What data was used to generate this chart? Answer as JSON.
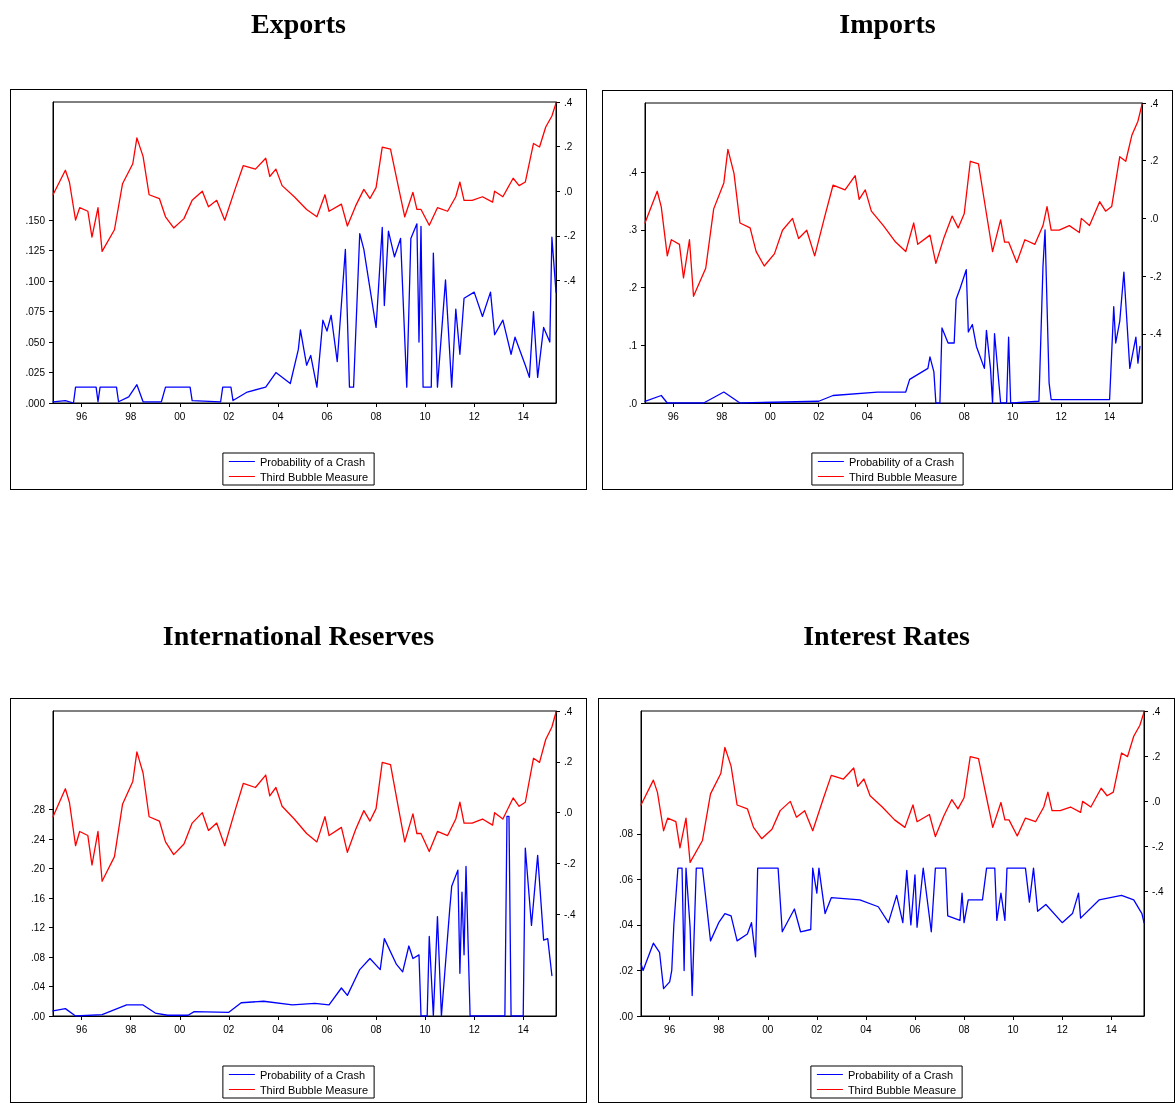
{
  "chart_data": [
    {
      "type": "line",
      "title": "Exports",
      "legend": "bottom",
      "marker": "none",
      "line_style": "solid",
      "xlim": [
        "1995-05",
        "2015-11"
      ],
      "xticks": [
        {
          "value": "1996-07",
          "label": "96"
        },
        {
          "value": "1998-07",
          "label": "98"
        },
        {
          "value": "2000-07",
          "label": "00"
        },
        {
          "value": "2002-07",
          "label": "02"
        },
        {
          "value": "2004-07",
          "label": "04"
        },
        {
          "value": "2006-07",
          "label": "06"
        },
        {
          "value": "2008-07",
          "label": "08"
        },
        {
          "value": "2010-07",
          "label": "10"
        },
        {
          "value": "2012-07",
          "label": "12"
        },
        {
          "value": "2014-07",
          "label": "14"
        }
      ],
      "ylim": [
        0,
        0.247
      ],
      "yticks": [
        {
          "value": 0,
          "label": ".000"
        },
        {
          "value": 0.025,
          "label": ".025"
        },
        {
          "value": 0.05,
          "label": ".050"
        },
        {
          "value": 0.075,
          "label": ".075"
        },
        {
          "value": 0.1,
          "label": ".100"
        },
        {
          "value": 0.125,
          "label": ".125"
        },
        {
          "value": 0.15,
          "label": ".150"
        }
      ],
      "y2lim": [
        -0.95,
        0.4
      ],
      "y2ticks": [
        {
          "value": 0.4,
          "label": ".4"
        },
        {
          "value": 0.2,
          "label": ".2"
        },
        {
          "value": 0,
          "label": ".0"
        },
        {
          "value": -0.2,
          "label": "-.2"
        },
        {
          "value": -0.4,
          "label": "-.4"
        }
      ],
      "series": [
        {
          "name": "Probability of a Crash",
          "color": "#0000ff",
          "x": [
            "1995-05",
            "1995-11",
            "1996-03",
            "1996-04",
            "1997-02",
            "1997-03",
            "1997-04",
            "1997-12",
            "1998-01",
            "1998-06",
            "1998-10",
            "1999-01",
            "1999-10",
            "1999-12",
            "2000-12",
            "2001-01",
            "2002-03",
            "2002-04",
            "2002-08",
            "2002-09",
            "2003-04",
            "2004-01",
            "2004-06",
            "2005-01",
            "2005-05",
            "2005-06",
            "2005-09",
            "2005-11",
            "2006-02",
            "2006-05",
            "2006-07",
            "2006-09",
            "2006-12",
            "2007-04",
            "2007-06",
            "2007-08",
            "2007-11",
            "2008-01",
            "2008-07",
            "2008-10",
            "2008-11",
            "2009-01",
            "2009-04",
            "2009-07",
            "2009-10",
            "2009-12",
            "2010-03",
            "2010-04",
            "2010-05",
            "2010-06",
            "2010-10",
            "2010-11",
            "2011-01",
            "2011-05",
            "2011-08",
            "2011-10",
            "2011-12",
            "2012-02",
            "2012-07",
            "2012-11",
            "2013-03",
            "2013-05",
            "2013-09",
            "2014-01",
            "2014-03",
            "2014-08",
            "2014-10",
            "2014-12",
            "2015-02",
            "2015-05",
            "2015-08",
            "2015-09",
            "2015-11"
          ],
          "values": [
            0.001,
            0.002,
            0.0,
            0.013,
            0.013,
            0.001,
            0.013,
            0.013,
            0.001,
            0.005,
            0.015,
            0.001,
            0.001,
            0.013,
            0.013,
            0.002,
            0.001,
            0.013,
            0.013,
            0.002,
            0.009,
            0.013,
            0.025,
            0.016,
            0.044,
            0.06,
            0.031,
            0.039,
            0.013,
            0.068,
            0.059,
            0.072,
            0.034,
            0.126,
            0.013,
            0.013,
            0.139,
            0.126,
            0.062,
            0.144,
            0.08,
            0.141,
            0.12,
            0.135,
            0.013,
            0.135,
            0.147,
            0.05,
            0.145,
            0.013,
            0.013,
            0.123,
            0.013,
            0.101,
            0.013,
            0.077,
            0.04,
            0.086,
            0.091,
            0.071,
            0.091,
            0.056,
            0.068,
            0.04,
            0.054,
            0.031,
            0.021,
            0.075,
            0.021,
            0.062,
            0.05,
            0.136,
            0.091
          ]
        },
        {
          "name": "Third Bubble Measure",
          "color": "#ff0000",
          "axis": "y2",
          "x": [
            "1995-05",
            "1995-11",
            "1996-01",
            "1996-04",
            "1996-06",
            "1996-10",
            "1996-12",
            "1997-03",
            "1997-05",
            "1997-11",
            "1998-03",
            "1998-08",
            "1998-10",
            "1999-01",
            "1999-04",
            "1999-09",
            "1999-12",
            "2000-04",
            "2000-09",
            "2001-01",
            "2001-06",
            "2001-09",
            "2002-01",
            "2002-05",
            "2002-10",
            "2003-02",
            "2003-08",
            "2004-01",
            "2004-03",
            "2004-06",
            "2004-09",
            "2005-03",
            "2005-09",
            "2006-02",
            "2006-06",
            "2006-08",
            "2007-02",
            "2007-05",
            "2007-09",
            "2008-01",
            "2008-04",
            "2008-07",
            "2008-10",
            "2009-02",
            "2009-06",
            "2009-09",
            "2010-01",
            "2010-03",
            "2010-05",
            "2010-09",
            "2011-01",
            "2011-06",
            "2011-10",
            "2011-12",
            "2012-02",
            "2012-06",
            "2012-11",
            "2013-04",
            "2013-05",
            "2013-09",
            "2014-02",
            "2014-05",
            "2014-08",
            "2014-12",
            "2015-03",
            "2015-06",
            "2015-09",
            "2015-11"
          ],
          "values": [
            -0.016,
            0.094,
            0.04,
            -0.13,
            -0.074,
            -0.09,
            -0.206,
            -0.074,
            -0.27,
            -0.173,
            0.033,
            0.123,
            0.239,
            0.156,
            -0.016,
            -0.033,
            -0.115,
            -0.165,
            -0.123,
            -0.041,
            0.0,
            -0.07,
            -0.041,
            -0.13,
            0.008,
            0.115,
            0.099,
            0.148,
            0.066,
            0.099,
            0.025,
            -0.025,
            -0.082,
            -0.115,
            -0.016,
            -0.09,
            -0.058,
            -0.156,
            -0.066,
            0.008,
            -0.033,
            0.016,
            0.198,
            0.189,
            0.016,
            -0.115,
            -0.005,
            -0.082,
            -0.082,
            -0.153,
            -0.074,
            -0.09,
            -0.025,
            0.041,
            -0.041,
            -0.041,
            -0.025,
            -0.049,
            0.0,
            -0.025,
            0.058,
            0.025,
            0.041,
            0.214,
            0.198,
            0.288,
            0.337,
            0.395
          ]
        }
      ]
    },
    {
      "type": "line",
      "title": "Imports",
      "legend": "bottom",
      "marker": "none",
      "line_style": "solid",
      "xlim": [
        "1995-05",
        "2015-11"
      ],
      "xticks": [
        {
          "value": "1996-07",
          "label": "96"
        },
        {
          "value": "1998-07",
          "label": "98"
        },
        {
          "value": "2000-07",
          "label": "00"
        },
        {
          "value": "2002-07",
          "label": "02"
        },
        {
          "value": "2004-07",
          "label": "04"
        },
        {
          "value": "2006-07",
          "label": "06"
        },
        {
          "value": "2008-07",
          "label": "08"
        },
        {
          "value": "2010-07",
          "label": "10"
        },
        {
          "value": "2012-07",
          "label": "12"
        },
        {
          "value": "2014-07",
          "label": "14"
        }
      ],
      "ylim": [
        0,
        0.52
      ],
      "yticks": [
        {
          "value": 0,
          "label": ".0"
        },
        {
          "value": 0.1,
          "label": ".1"
        },
        {
          "value": 0.2,
          "label": ".2"
        },
        {
          "value": 0.3,
          "label": ".3"
        },
        {
          "value": 0.4,
          "label": ".4"
        }
      ],
      "y2lim": [
        -0.64,
        0.4
      ],
      "y2ticks": [
        {
          "value": 0.4,
          "label": ".4"
        },
        {
          "value": 0.2,
          "label": ".2"
        },
        {
          "value": 0,
          "label": ".0"
        },
        {
          "value": -0.2,
          "label": "-.2"
        },
        {
          "value": -0.4,
          "label": "-.4"
        }
      ],
      "series": [
        {
          "name": "Probability of a Crash",
          "color": "#0000ff",
          "x": [
            "1995-05",
            "1996-01",
            "1996-04",
            "1997-10",
            "1998-08",
            "1999-04",
            "2002-07",
            "2003-02",
            "2004-12",
            "2006-02",
            "2006-04",
            "2007-01",
            "2007-02",
            "2007-04",
            "2007-05",
            "2007-07",
            "2007-08",
            "2007-11",
            "2008-02",
            "2008-03",
            "2008-05",
            "2008-08",
            "2008-09",
            "2008-11",
            "2009-01",
            "2009-05",
            "2009-06",
            "2009-08",
            "2009-09",
            "2009-10",
            "2010-01",
            "2010-04",
            "2010-05",
            "2010-06",
            "2011-08",
            "2011-10",
            "2011-11",
            "2012-01",
            "2012-02",
            "2014-07",
            "2014-09",
            "2014-10",
            "2014-12",
            "2015-02",
            "2015-05",
            "2015-08",
            "2015-09",
            "2015-10"
          ],
          "values": [
            0.003,
            0.013,
            0,
            0,
            0.019,
            0,
            0.003,
            0.013,
            0.019,
            0.019,
            0.041,
            0.06,
            0.08,
            0.054,
            0,
            0,
            0.13,
            0.104,
            0.104,
            0.18,
            0.199,
            0.231,
            0.123,
            0.136,
            0.098,
            0.06,
            0.126,
            0.06,
            0,
            0.12,
            0,
            0,
            0.114,
            0,
            0.003,
            0.237,
            0.3,
            0.035,
            0.006,
            0.006,
            0.167,
            0.104,
            0.142,
            0.227,
            0.06,
            0.114,
            0.069,
            0.098
          ]
        },
        {
          "name": "Third Bubble Measure",
          "color": "#ff0000",
          "axis": "y2",
          "x": [
            "1995-05",
            "1995-11",
            "1996-01",
            "1996-04",
            "1996-06",
            "1996-10",
            "1996-12",
            "1997-03",
            "1997-05",
            "1997-11",
            "1998-03",
            "1998-08",
            "1998-10",
            "1999-01",
            "1999-04",
            "1999-09",
            "1999-12",
            "2000-04",
            "2000-09",
            "2001-01",
            "2001-06",
            "2001-09",
            "2002-01",
            "2002-05",
            "2002-10",
            "2003-02",
            "2003-08",
            "2004-01",
            "2004-03",
            "2004-06",
            "2004-09",
            "2005-03",
            "2005-09",
            "2006-02",
            "2006-06",
            "2006-08",
            "2007-02",
            "2007-05",
            "2007-09",
            "2008-01",
            "2008-04",
            "2008-07",
            "2008-10",
            "2009-02",
            "2009-06",
            "2009-09",
            "2010-01",
            "2010-03",
            "2010-05",
            "2010-09",
            "2011-01",
            "2011-06",
            "2011-10",
            "2011-12",
            "2012-02",
            "2012-06",
            "2012-11",
            "2013-04",
            "2013-05",
            "2013-09",
            "2014-02",
            "2014-05",
            "2014-08",
            "2014-12",
            "2015-03",
            "2015-06",
            "2015-09",
            "2015-11"
          ],
          "values": [
            -0.016,
            0.094,
            0.04,
            -0.13,
            -0.074,
            -0.09,
            -0.206,
            -0.074,
            -0.27,
            -0.173,
            0.033,
            0.123,
            0.239,
            0.156,
            -0.016,
            -0.033,
            -0.115,
            -0.165,
            -0.123,
            -0.041,
            0.0,
            -0.07,
            -0.041,
            -0.13,
            0.008,
            0.115,
            0.099,
            0.148,
            0.066,
            0.099,
            0.025,
            -0.025,
            -0.082,
            -0.115,
            -0.016,
            -0.09,
            -0.058,
            -0.156,
            -0.066,
            0.008,
            -0.033,
            0.016,
            0.198,
            0.189,
            0.016,
            -0.115,
            -0.005,
            -0.082,
            -0.082,
            -0.153,
            -0.074,
            -0.09,
            -0.025,
            0.041,
            -0.041,
            -0.041,
            -0.025,
            -0.049,
            0.0,
            -0.025,
            0.058,
            0.025,
            0.041,
            0.214,
            0.198,
            0.288,
            0.337,
            0.395
          ]
        }
      ]
    },
    {
      "type": "line",
      "title": "International Reserves",
      "legend": "bottom",
      "marker": "none",
      "line_style": "solid",
      "xlim": [
        "1995-05",
        "2015-11"
      ],
      "xticks": [
        {
          "value": "1996-07",
          "label": "96"
        },
        {
          "value": "1998-07",
          "label": "98"
        },
        {
          "value": "2000-07",
          "label": "00"
        },
        {
          "value": "2002-07",
          "label": "02"
        },
        {
          "value": "2004-07",
          "label": "04"
        },
        {
          "value": "2006-07",
          "label": "06"
        },
        {
          "value": "2008-07",
          "label": "08"
        },
        {
          "value": "2010-07",
          "label": "10"
        },
        {
          "value": "2012-07",
          "label": "12"
        },
        {
          "value": "2014-07",
          "label": "14"
        }
      ],
      "ylim": [
        0,
        0.414
      ],
      "yticks": [
        {
          "value": 0,
          "label": ".00"
        },
        {
          "value": 0.04,
          "label": ".04"
        },
        {
          "value": 0.08,
          "label": ".08"
        },
        {
          "value": 0.12,
          "label": ".12"
        },
        {
          "value": 0.16,
          "label": ".16"
        },
        {
          "value": 0.2,
          "label": ".20"
        },
        {
          "value": 0.24,
          "label": ".24"
        },
        {
          "value": 0.28,
          "label": ".28"
        }
      ],
      "y2lim": [
        -0.8,
        0.4
      ],
      "y2ticks": [
        {
          "value": 0.4,
          "label": ".4"
        },
        {
          "value": 0.2,
          "label": ".2"
        },
        {
          "value": 0,
          "label": ".0"
        },
        {
          "value": -0.2,
          "label": "-.2"
        },
        {
          "value": -0.4,
          "label": "-.4"
        }
      ],
      "series": [
        {
          "name": "Probability of a Crash",
          "color": "#0000ff",
          "x": [
            "1995-05",
            "1995-11",
            "1996-04",
            "1997-05",
            "1998-05",
            "1999-01",
            "1999-07",
            "2000-01",
            "2000-11",
            "2001-02",
            "2002-07",
            "2003-01",
            "2003-12",
            "2005-02",
            "2006-01",
            "2006-08",
            "2007-02",
            "2007-05",
            "2007-11",
            "2008-04",
            "2008-09",
            "2008-11",
            "2009-05",
            "2009-08",
            "2009-11",
            "2010-01",
            "2010-04",
            "2010-05",
            "2010-08",
            "2010-09",
            "2010-11",
            "2011-01",
            "2011-03",
            "2011-07",
            "2011-08",
            "2011-11",
            "2011-12",
            "2012-01",
            "2012-02",
            "2012-03",
            "2012-05",
            "2013-10",
            "2013-11",
            "2013-12",
            "2014-01",
            "2014-07",
            "2014-08",
            "2014-11",
            "2015-02",
            "2015-05",
            "2015-07",
            "2015-09"
          ],
          "values": [
            0.007,
            0.01,
            0.0,
            0.002,
            0.015,
            0.015,
            0.004,
            0.001,
            0.001,
            0.006,
            0.005,
            0.018,
            0.02,
            0.015,
            0.017,
            0.015,
            0.038,
            0.028,
            0.063,
            0.078,
            0.063,
            0.105,
            0.07,
            0.06,
            0.095,
            0.078,
            0.083,
            0,
            0,
            0.108,
            0,
            0.135,
            0,
            0.143,
            0.176,
            0.198,
            0.058,
            0.168,
            0.083,
            0.203,
            0,
            0,
            0.271,
            0.271,
            0,
            0,
            0.228,
            0.123,
            0.218,
            0.103,
            0.105,
            0.055
          ]
        },
        {
          "name": "Third Bubble Measure",
          "color": "#ff0000",
          "axis": "y2",
          "x": [
            "1995-05",
            "1995-11",
            "1996-01",
            "1996-04",
            "1996-06",
            "1996-10",
            "1996-12",
            "1997-03",
            "1997-05",
            "1997-11",
            "1998-03",
            "1998-08",
            "1998-10",
            "1999-01",
            "1999-04",
            "1999-09",
            "1999-12",
            "2000-04",
            "2000-09",
            "2001-01",
            "2001-06",
            "2001-09",
            "2002-01",
            "2002-05",
            "2002-10",
            "2003-02",
            "2003-08",
            "2004-01",
            "2004-03",
            "2004-06",
            "2004-09",
            "2005-03",
            "2005-09",
            "2006-02",
            "2006-06",
            "2006-08",
            "2007-02",
            "2007-05",
            "2007-09",
            "2008-01",
            "2008-04",
            "2008-07",
            "2008-10",
            "2009-02",
            "2009-06",
            "2009-09",
            "2010-01",
            "2010-03",
            "2010-05",
            "2010-09",
            "2011-01",
            "2011-06",
            "2011-10",
            "2011-12",
            "2012-02",
            "2012-06",
            "2012-11",
            "2013-04",
            "2013-05",
            "2013-09",
            "2014-02",
            "2014-05",
            "2014-08",
            "2014-12",
            "2015-03",
            "2015-06",
            "2015-09",
            "2015-11"
          ],
          "values": [
            -0.016,
            0.094,
            0.04,
            -0.13,
            -0.074,
            -0.09,
            -0.206,
            -0.074,
            -0.27,
            -0.173,
            0.033,
            0.123,
            0.239,
            0.156,
            -0.016,
            -0.033,
            -0.115,
            -0.165,
            -0.123,
            -0.041,
            0.0,
            -0.07,
            -0.041,
            -0.13,
            0.008,
            0.115,
            0.099,
            0.148,
            0.066,
            0.099,
            0.025,
            -0.025,
            -0.082,
            -0.115,
            -0.016,
            -0.09,
            -0.058,
            -0.156,
            -0.066,
            0.008,
            -0.033,
            0.016,
            0.198,
            0.189,
            0.016,
            -0.115,
            -0.005,
            -0.082,
            -0.082,
            -0.153,
            -0.074,
            -0.09,
            -0.025,
            0.041,
            -0.041,
            -0.041,
            -0.025,
            -0.049,
            0.0,
            -0.025,
            0.058,
            0.025,
            0.041,
            0.214,
            0.198,
            0.288,
            0.337,
            0.395
          ]
        }
      ]
    },
    {
      "type": "line",
      "title": "Interest Rates",
      "legend": "bottom",
      "marker": "none",
      "line_style": "solid",
      "xlim": [
        "1995-05",
        "2015-11"
      ],
      "xticks": [
        {
          "value": "1996-07",
          "label": "96"
        },
        {
          "value": "1998-07",
          "label": "98"
        },
        {
          "value": "2000-07",
          "label": "00"
        },
        {
          "value": "2002-07",
          "label": "02"
        },
        {
          "value": "2004-07",
          "label": "04"
        },
        {
          "value": "2006-07",
          "label": "06"
        },
        {
          "value": "2008-07",
          "label": "08"
        },
        {
          "value": "2010-07",
          "label": "10"
        },
        {
          "value": "2012-07",
          "label": "12"
        },
        {
          "value": "2014-07",
          "label": "14"
        }
      ],
      "ylim": [
        0,
        0.134
      ],
      "yticks": [
        {
          "value": 0,
          "label": ".00"
        },
        {
          "value": 0.02,
          "label": ".02"
        },
        {
          "value": 0.04,
          "label": ".04"
        },
        {
          "value": 0.06,
          "label": ".06"
        },
        {
          "value": 0.08,
          "label": ".08"
        }
      ],
      "y2lim": [
        -0.95,
        0.4
      ],
      "y2ticks": [
        {
          "value": 0.4,
          "label": ".4"
        },
        {
          "value": 0.2,
          "label": ".2"
        },
        {
          "value": 0,
          "label": ".0"
        },
        {
          "value": -0.2,
          "label": "-.2"
        },
        {
          "value": -0.4,
          "label": "-.4"
        }
      ],
      "series": [
        {
          "name": "Probability of a Crash",
          "color": "#0000ff",
          "x": [
            "1995-05",
            "1995-06",
            "1995-11",
            "1996-02",
            "1996-04",
            "1996-07",
            "1996-08",
            "1996-09",
            "1996-11",
            "1997-01",
            "1997-02",
            "1997-03",
            "1997-05",
            "1997-06",
            "1997-08",
            "1997-11",
            "1998-03",
            "1998-07",
            "1998-10",
            "1999-01",
            "1999-04",
            "1999-09",
            "1999-11",
            "2000-01",
            "2000-02",
            "2000-12",
            "2001-02",
            "2001-08",
            "2001-11",
            "2002-04",
            "2002-05",
            "2002-07",
            "2002-08",
            "2002-11",
            "2003-02",
            "2004-04",
            "2005-01",
            "2005-06",
            "2005-10",
            "2006-01",
            "2006-03",
            "2006-05",
            "2006-07",
            "2006-08",
            "2006-11",
            "2007-03",
            "2007-05",
            "2007-10",
            "2007-11",
            "2008-05",
            "2008-06",
            "2008-07",
            "2008-09",
            "2009-04",
            "2009-06",
            "2009-10",
            "2009-11",
            "2010-01",
            "2010-03",
            "2010-04",
            "2011-01",
            "2011-03",
            "2011-05",
            "2011-07",
            "2011-11",
            "2012-07",
            "2012-12",
            "2013-03",
            "2013-04",
            "2014-01",
            "2014-12",
            "2015-06",
            "2015-10",
            "2015-11"
          ],
          "values": [
            0.023,
            0.02,
            0.032,
            0.028,
            0.012,
            0.015,
            0.02,
            0.04,
            0.065,
            0.065,
            0.02,
            0.065,
            0.039,
            0.009,
            0.065,
            0.065,
            0.033,
            0.041,
            0.045,
            0.044,
            0.033,
            0.036,
            0.041,
            0.026,
            0.065,
            0.065,
            0.037,
            0.047,
            0.037,
            0.038,
            0.065,
            0.054,
            0.065,
            0.045,
            0.052,
            0.051,
            0.048,
            0.041,
            0.053,
            0.041,
            0.064,
            0.04,
            0.062,
            0.039,
            0.065,
            0.037,
            0.065,
            0.065,
            0.044,
            0.042,
            0.054,
            0.041,
            0.051,
            0.051,
            0.065,
            0.065,
            0.042,
            0.054,
            0.042,
            0.065,
            0.065,
            0.05,
            0.065,
            0.046,
            0.049,
            0.041,
            0.045,
            0.054,
            0.043,
            0.051,
            0.053,
            0.051,
            0.045,
            0.041
          ]
        },
        {
          "name": "Third Bubble Measure",
          "color": "#ff0000",
          "axis": "y2",
          "x": [
            "1995-05",
            "1995-11",
            "1996-01",
            "1996-04",
            "1996-06",
            "1996-10",
            "1996-12",
            "1997-03",
            "1997-05",
            "1997-11",
            "1998-03",
            "1998-08",
            "1998-10",
            "1999-01",
            "1999-04",
            "1999-09",
            "1999-12",
            "2000-04",
            "2000-09",
            "2001-01",
            "2001-06",
            "2001-09",
            "2002-01",
            "2002-05",
            "2002-10",
            "2003-02",
            "2003-08",
            "2004-01",
            "2004-03",
            "2004-06",
            "2004-09",
            "2005-03",
            "2005-09",
            "2006-02",
            "2006-06",
            "2006-08",
            "2007-02",
            "2007-05",
            "2007-09",
            "2008-01",
            "2008-04",
            "2008-07",
            "2008-10",
            "2009-02",
            "2009-06",
            "2009-09",
            "2010-01",
            "2010-03",
            "2010-05",
            "2010-09",
            "2011-01",
            "2011-06",
            "2011-10",
            "2011-12",
            "2012-02",
            "2012-06",
            "2012-11",
            "2013-04",
            "2013-05",
            "2013-09",
            "2014-02",
            "2014-05",
            "2014-08",
            "2014-12",
            "2015-03",
            "2015-06",
            "2015-09",
            "2015-11"
          ],
          "values": [
            -0.016,
            0.094,
            0.04,
            -0.13,
            -0.074,
            -0.09,
            -0.206,
            -0.074,
            -0.27,
            -0.173,
            0.033,
            0.123,
            0.239,
            0.156,
            -0.016,
            -0.033,
            -0.115,
            -0.165,
            -0.123,
            -0.041,
            0.0,
            -0.07,
            -0.041,
            -0.13,
            0.008,
            0.115,
            0.099,
            0.148,
            0.066,
            0.099,
            0.025,
            -0.025,
            -0.082,
            -0.115,
            -0.016,
            -0.09,
            -0.058,
            -0.156,
            -0.066,
            0.008,
            -0.033,
            0.016,
            0.198,
            0.189,
            0.016,
            -0.115,
            -0.005,
            -0.082,
            -0.082,
            -0.153,
            -0.074,
            -0.09,
            -0.025,
            0.041,
            -0.041,
            -0.041,
            -0.025,
            -0.049,
            0.0,
            -0.025,
            0.058,
            0.025,
            0.041,
            0.214,
            0.198,
            0.288,
            0.337,
            0.395
          ]
        }
      ]
    }
  ]
}
